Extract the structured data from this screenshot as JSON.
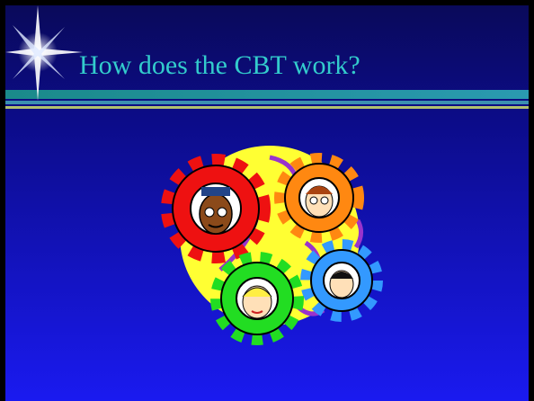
{
  "header": {
    "title": "How does the CBT work?"
  }
}
